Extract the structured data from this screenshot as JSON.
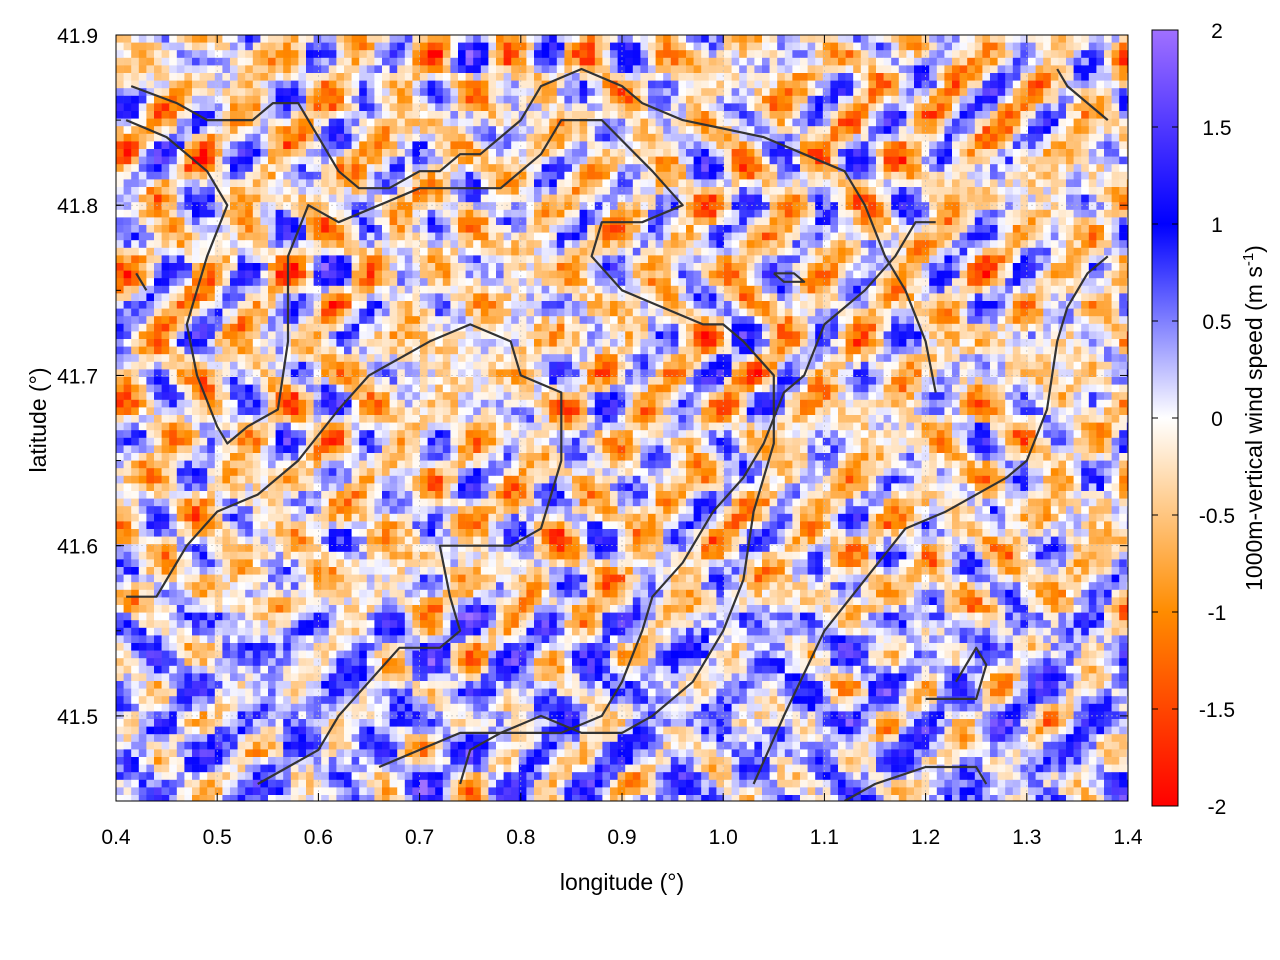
{
  "chart_data": {
    "type": "heatmap",
    "title": "",
    "xlabel": "longitude (°)",
    "ylabel": "latitude (°)",
    "xlim": [
      0.4,
      1.4
    ],
    "ylim": [
      41.45,
      41.9
    ],
    "xticks": [
      "0.4",
      "0.5",
      "0.6",
      "0.7",
      "0.8",
      "0.9",
      "1.0",
      "1.1",
      "1.2",
      "1.3",
      "1.4"
    ],
    "yticks": [
      "41.5",
      "41.6",
      "41.7",
      "41.8",
      "41.9"
    ],
    "grid": true,
    "colorbar": {
      "label": "1000m-vertical wind speed (m s",
      "label_sup": "-1",
      "label_end": ")",
      "range": [
        -2,
        2
      ],
      "ticks": [
        "-2",
        "-1.5",
        "-1",
        "-0.5",
        "0",
        "0.5",
        "1",
        "1.5",
        "2"
      ],
      "colors": [
        {
          "v": -2,
          "c": "#ff0000"
        },
        {
          "v": -1,
          "c": "#ff8c00"
        },
        {
          "v": 0,
          "c": "#ffffff"
        },
        {
          "v": 1,
          "c": "#0000ff"
        },
        {
          "v": 2,
          "c": "#a070ff"
        }
      ]
    },
    "field_description": "gridded vertical wind speed values in m/s (approx. -2 to 2) over the longitude/latitude domain, with overlaid coastline/boundary contour lines",
    "contour_color": "#333333",
    "contours": [
      [
        [
          0.42,
          41.76
        ],
        [
          0.43,
          41.75
        ]
      ],
      [
        [
          0.415,
          41.87
        ],
        [
          0.46,
          41.86
        ],
        [
          0.49,
          41.85
        ],
        [
          0.535,
          41.85
        ],
        [
          0.555,
          41.86
        ],
        [
          0.58,
          41.86
        ],
        [
          0.6,
          41.84
        ],
        [
          0.62,
          41.82
        ],
        [
          0.64,
          41.81
        ],
        [
          0.67,
          41.81
        ],
        [
          0.7,
          41.82
        ],
        [
          0.72,
          41.82
        ],
        [
          0.74,
          41.83
        ],
        [
          0.76,
          41.83
        ],
        [
          0.78,
          41.84
        ],
        [
          0.8,
          41.85
        ],
        [
          0.82,
          41.87
        ],
        [
          0.86,
          41.88
        ],
        [
          0.9,
          41.87
        ],
        [
          0.92,
          41.86
        ],
        [
          0.96,
          41.85
        ],
        [
          1.0,
          41.845
        ],
        [
          1.04,
          41.84
        ],
        [
          1.08,
          41.83
        ],
        [
          1.12,
          41.82
        ],
        [
          1.14,
          41.8
        ],
        [
          1.16,
          41.77
        ],
        [
          1.18,
          41.75
        ],
        [
          1.2,
          41.72
        ],
        [
          1.21,
          41.69
        ]
      ],
      [
        [
          0.41,
          41.85
        ],
        [
          0.45,
          41.84
        ],
        [
          0.49,
          41.82
        ],
        [
          0.51,
          41.8
        ],
        [
          0.49,
          41.77
        ],
        [
          0.47,
          41.73
        ],
        [
          0.48,
          41.7
        ],
        [
          0.5,
          41.67
        ],
        [
          0.51,
          41.66
        ],
        [
          0.53,
          41.67
        ],
        [
          0.56,
          41.68
        ],
        [
          0.57,
          41.72
        ],
        [
          0.57,
          41.77
        ],
        [
          0.59,
          41.8
        ],
        [
          0.62,
          41.79
        ],
        [
          0.66,
          41.8
        ],
        [
          0.7,
          41.81
        ],
        [
          0.78,
          41.81
        ],
        [
          0.82,
          41.83
        ],
        [
          0.84,
          41.85
        ],
        [
          0.88,
          41.85
        ],
        [
          0.93,
          41.82
        ],
        [
          0.96,
          41.8
        ],
        [
          0.92,
          41.79
        ],
        [
          0.88,
          41.79
        ],
        [
          0.87,
          41.77
        ],
        [
          0.9,
          41.75
        ],
        [
          0.94,
          41.74
        ],
        [
          0.98,
          41.73
        ],
        [
          1.0,
          41.73
        ],
        [
          1.02,
          41.72
        ],
        [
          1.05,
          41.7
        ],
        [
          1.05,
          41.66
        ],
        [
          1.03,
          41.62
        ],
        [
          1.02,
          41.58
        ],
        [
          1.0,
          41.55
        ],
        [
          0.97,
          41.52
        ],
        [
          0.93,
          41.5
        ],
        [
          0.9,
          41.49
        ],
        [
          0.86,
          41.49
        ],
        [
          0.82,
          41.5
        ],
        [
          0.78,
          41.49
        ],
        [
          0.74,
          41.49
        ],
        [
          0.7,
          41.48
        ],
        [
          0.66,
          41.47
        ]
      ],
      [
        [
          0.41,
          41.57
        ],
        [
          0.44,
          41.57
        ],
        [
          0.47,
          41.6
        ],
        [
          0.5,
          41.62
        ],
        [
          0.54,
          41.63
        ],
        [
          0.58,
          41.65
        ],
        [
          0.62,
          41.68
        ],
        [
          0.65,
          41.7
        ],
        [
          0.68,
          41.71
        ],
        [
          0.71,
          41.72
        ],
        [
          0.75,
          41.73
        ],
        [
          0.79,
          41.72
        ],
        [
          0.8,
          41.7
        ],
        [
          0.84,
          41.69
        ],
        [
          0.84,
          41.65
        ],
        [
          0.82,
          41.61
        ],
        [
          0.79,
          41.6
        ],
        [
          0.75,
          41.6
        ],
        [
          0.72,
          41.6
        ],
        [
          0.73,
          41.57
        ],
        [
          0.74,
          41.55
        ],
        [
          0.72,
          41.54
        ],
        [
          0.68,
          41.54
        ],
        [
          0.65,
          41.52
        ],
        [
          0.62,
          41.5
        ],
        [
          0.6,
          41.48
        ],
        [
          0.57,
          41.47
        ],
        [
          0.54,
          41.46
        ]
      ],
      [
        [
          0.74,
          41.46
        ],
        [
          0.75,
          41.48
        ],
        [
          0.78,
          41.49
        ],
        [
          0.8,
          41.49
        ],
        [
          0.84,
          41.49
        ],
        [
          0.88,
          41.5
        ],
        [
          0.9,
          41.52
        ],
        [
          0.92,
          41.55
        ],
        [
          0.93,
          41.57
        ],
        [
          0.96,
          41.59
        ],
        [
          0.99,
          41.62
        ],
        [
          1.02,
          41.64
        ],
        [
          1.04,
          41.66
        ],
        [
          1.06,
          41.69
        ],
        [
          1.08,
          41.7
        ],
        [
          1.1,
          41.73
        ],
        [
          1.14,
          41.75
        ],
        [
          1.17,
          41.77
        ],
        [
          1.19,
          41.79
        ],
        [
          1.21,
          41.79
        ]
      ],
      [
        [
          1.03,
          41.46
        ],
        [
          1.06,
          41.5
        ],
        [
          1.1,
          41.55
        ],
        [
          1.14,
          41.58
        ],
        [
          1.18,
          41.61
        ],
        [
          1.22,
          41.62
        ],
        [
          1.25,
          41.63
        ],
        [
          1.28,
          41.64
        ],
        [
          1.3,
          41.65
        ],
        [
          1.32,
          41.68
        ],
        [
          1.33,
          41.72
        ],
        [
          1.34,
          41.74
        ],
        [
          1.36,
          41.76
        ],
        [
          1.38,
          41.77
        ]
      ],
      [
        [
          1.12,
          41.45
        ],
        [
          1.15,
          41.46
        ],
        [
          1.2,
          41.47
        ],
        [
          1.25,
          41.47
        ],
        [
          1.26,
          41.46
        ]
      ],
      [
        [
          1.2,
          41.51
        ],
        [
          1.25,
          41.51
        ],
        [
          1.26,
          41.53
        ],
        [
          1.25,
          41.54
        ],
        [
          1.23,
          41.52
        ]
      ],
      [
        [
          1.33,
          41.88
        ],
        [
          1.34,
          41.87
        ],
        [
          1.36,
          41.86
        ],
        [
          1.38,
          41.85
        ]
      ],
      [
        [
          1.05,
          41.76
        ],
        [
          1.07,
          41.76
        ],
        [
          1.08,
          41.755
        ],
        [
          1.06,
          41.755
        ],
        [
          1.05,
          41.76
        ]
      ]
    ]
  }
}
